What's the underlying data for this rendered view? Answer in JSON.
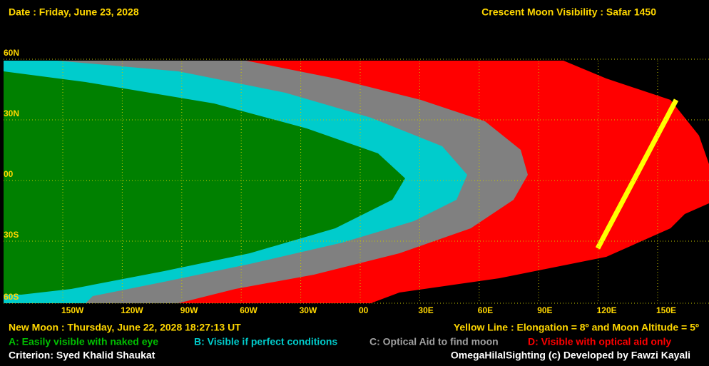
{
  "header": {
    "date": "Date : Friday, June 23, 2028",
    "title": "Crescent Moon Visibility : Safar  1450"
  },
  "latitude_labels": [
    "60N",
    "30N",
    "00",
    "30S",
    "60S"
  ],
  "longitude_labels": [
    "150W",
    "120W",
    "90W",
    "60W",
    "30W",
    "00",
    "30E",
    "60E",
    "90E",
    "120E",
    "150E"
  ],
  "footer": {
    "new_moon": "New Moon : Thursday, June 22, 2028  18:27:13  UT",
    "yellow_line": "Yellow Line : Elongation = 8º  and Moon Altitude = 5º",
    "criterion": "Criterion: Syed Khalid Shaukat",
    "credit": "OmegaHilalSighting  (c)  Developed by Fawzi Kayali"
  },
  "legend": [
    "A: Easily visible with naked eye",
    "B: Visible if perfect conditions",
    "C: Optical Aid to find moon",
    "D: Visible with optical aid only"
  ]
}
